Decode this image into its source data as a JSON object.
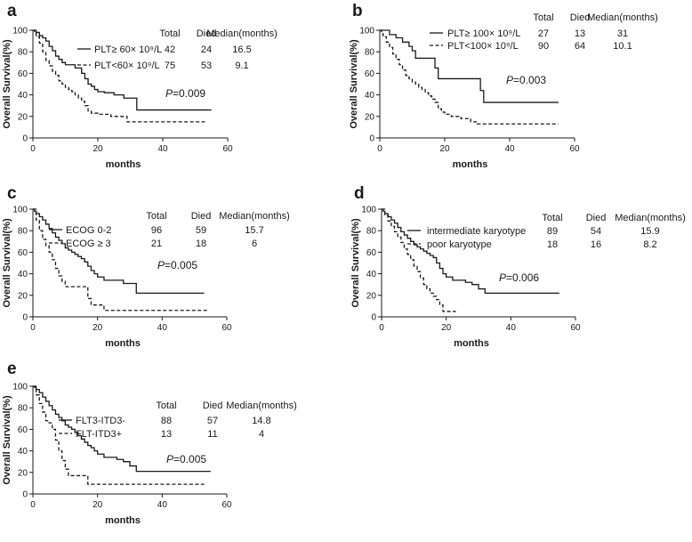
{
  "figure": {
    "common": {
      "y_label": "Overall Survival(%)",
      "x_label": "months",
      "x_ticks": [
        "0",
        "20",
        "40",
        "60"
      ],
      "y_ticks": [
        "0",
        "20",
        "40",
        "60",
        "80",
        "100"
      ],
      "xlim": [
        0,
        60
      ],
      "ylim": [
        0,
        100
      ],
      "table_headers": [
        "Total",
        "Died",
        "Median(months)"
      ]
    },
    "chart_data": [
      {
        "panel": "a",
        "type": "line",
        "title": "",
        "xlabel": "months",
        "ylabel": "Overall Survival(%)",
        "xlim": [
          0,
          60
        ],
        "ylim": [
          0,
          100
        ],
        "p_italic": "P",
        "p_value": "=0.009",
        "series": [
          {
            "name": "PLT≥ 60× 10⁹/L",
            "style": "solid",
            "total": "42",
            "died": "24",
            "median": "16.5",
            "x": [
              0,
              1,
              2,
              3,
              4,
              5,
              6,
              7,
              8,
              9,
              10,
              12,
              13,
              14,
              15,
              16,
              17,
              18,
              19,
              20,
              22,
              25,
              28,
              32,
              55
            ],
            "y": [
              100,
              98,
              95,
              93,
              90,
              85,
              81,
              76,
              73,
              70,
              68,
              68,
              65,
              65,
              60,
              55,
              50,
              48,
              45,
              43,
              42,
              40,
              37,
              26,
              26
            ]
          },
          {
            "name": "PLT<60× 10⁹/L",
            "style": "dashed",
            "total": "75",
            "died": "53",
            "median": "9.1",
            "x": [
              0,
              0.5,
              1,
              2,
              3,
              4,
              5,
              6,
              7,
              8,
              9,
              10,
              11,
              12,
              13,
              14,
              15,
              16,
              17,
              18,
              20,
              24,
              29,
              53
            ],
            "y": [
              100,
              97,
              94,
              88,
              80,
              72,
              67,
              62,
              58,
              53,
              50,
              47,
              45,
              43,
              40,
              37,
              34,
              30,
              25,
              23,
              22,
              20,
              15,
              15
            ]
          }
        ]
      },
      {
        "panel": "b",
        "type": "line",
        "title": "",
        "xlabel": "months",
        "ylabel": "Overall Survival(%)",
        "xlim": [
          0,
          60
        ],
        "ylim": [
          0,
          100
        ],
        "p_italic": "P",
        "p_value": "=0.003",
        "series": [
          {
            "name": "PLT≥ 100× 10⁹/L",
            "style": "solid",
            "total": "27",
            "died": "13",
            "median": "31",
            "x": [
              0,
              3,
              5,
              7,
              9,
              10,
              11,
              15,
              17,
              18,
              30,
              31,
              32,
              55
            ],
            "y": [
              100,
              96,
              93,
              89,
              85,
              81,
              74,
              74,
              65,
              55,
              55,
              44,
              33,
              33
            ]
          },
          {
            "name": "PLT<100× 10⁹/L",
            "style": "dashed",
            "total": "90",
            "died": "64",
            "median": "10.1",
            "x": [
              0,
              0.5,
              1,
              2,
              3,
              4,
              5,
              6,
              7,
              8,
              9,
              10,
              11,
              12,
              13,
              14,
              15,
              16,
              17,
              18,
              19,
              20,
              22,
              25,
              28,
              30,
              55
            ],
            "y": [
              100,
              97,
              94,
              89,
              84,
              78,
              73,
              68,
              63,
              58,
              55,
              52,
              50,
              47,
              45,
              42,
              39,
              36,
              33,
              27,
              24,
              22,
              20,
              18,
              15,
              13,
              13
            ]
          }
        ]
      },
      {
        "panel": "c",
        "type": "line",
        "title": "",
        "xlabel": "months",
        "ylabel": "Overall Survival(%)",
        "xlim": [
          0,
          60
        ],
        "ylim": [
          0,
          100
        ],
        "p_italic": "P",
        "p_value": "=0.005",
        "series": [
          {
            "name": "ECOG 0-2",
            "style": "solid",
            "total": "96",
            "died": "59",
            "median": "15.7",
            "x": [
              0,
              0.5,
              1,
              2,
              3,
              4,
              5,
              6,
              7,
              8,
              9,
              10,
              11,
              12,
              13,
              14,
              15,
              16,
              17,
              18,
              19,
              20,
              22,
              26,
              28,
              32,
              53
            ],
            "y": [
              100,
              98,
              96,
              93,
              90,
              86,
              82,
              78,
              74,
              71,
              68,
              64,
              62,
              60,
              58,
              56,
              54,
              51,
              47,
              43,
              40,
              37,
              34,
              34,
              31,
              22,
              22
            ]
          },
          {
            "name": "ECOG ≥ 3",
            "style": "dashed",
            "total": "21",
            "died": "18",
            "median": "6",
            "x": [
              0,
              1,
              2,
              3,
              4,
              5,
              6,
              7,
              8,
              9,
              10,
              16,
              17,
              18,
              22,
              25,
              54
            ],
            "y": [
              100,
              90,
              80,
              72,
              66,
              60,
              53,
              45,
              38,
              33,
              28,
              28,
              17,
              11,
              6,
              6,
              6
            ]
          }
        ]
      },
      {
        "panel": "d",
        "type": "line",
        "title": "",
        "xlabel": "months",
        "ylabel": "Overall Survival(%)",
        "xlim": [
          0,
          60
        ],
        "ylim": [
          0,
          100
        ],
        "p_italic": "P",
        "p_value": "=0.006",
        "series": [
          {
            "name": "intermediate karyotype",
            "style": "solid",
            "total": "89",
            "died": "54",
            "median": "15.9",
            "x": [
              0,
              0.5,
              1,
              2,
              3,
              4,
              5,
              6,
              7,
              8,
              9,
              10,
              11,
              12,
              13,
              14,
              15,
              16,
              17,
              18,
              19,
              20,
              22,
              26,
              28,
              30,
              32,
              55
            ],
            "y": [
              100,
              98,
              96,
              93,
              90,
              87,
              83,
              79,
              76,
              73,
              70,
              67,
              65,
              63,
              61,
              59,
              57,
              55,
              50,
              45,
              40,
              37,
              34,
              32,
              30,
              26,
              22,
              22
            ]
          },
          {
            "name": "poor karyotype",
            "style": "dashed",
            "total": "18",
            "died": "16",
            "median": "8.2",
            "x": [
              0,
              1,
              2,
              3,
              4,
              5,
              6,
              7,
              8,
              9,
              10,
              11,
              12,
              13,
              14,
              15,
              16,
              17,
              18,
              19,
              20,
              23
            ],
            "y": [
              100,
              94,
              89,
              84,
              79,
              74,
              69,
              63,
              58,
              53,
              47,
              42,
              36,
              30,
              26,
              22,
              19,
              16,
              11,
              5,
              5,
              5
            ]
          }
        ]
      },
      {
        "panel": "e",
        "type": "line",
        "title": "",
        "xlabel": "months",
        "ylabel": "Overall Survival(%)",
        "xlim": [
          0,
          60
        ],
        "ylim": [
          0,
          100
        ],
        "p_italic": "P",
        "p_value": "=0.005",
        "series": [
          {
            "name": "FLT3-ITD3-",
            "style": "solid",
            "total": "88",
            "died": "57",
            "median": "14.8",
            "x": [
              0,
              0.5,
              1,
              2,
              3,
              4,
              5,
              6,
              7,
              8,
              9,
              10,
              11,
              12,
              13,
              14,
              15,
              16,
              17,
              18,
              19,
              20,
              22,
              26,
              28,
              30,
              32,
              55
            ],
            "y": [
              100,
              99,
              97,
              94,
              90,
              86,
              82,
              78,
              74,
              71,
              68,
              64,
              62,
              60,
              57,
              54,
              51,
              48,
              45,
              43,
              40,
              37,
              34,
              32,
              30,
              26,
              21,
              21
            ]
          },
          {
            "name": "FLT-ITD3+",
            "style": "dashed",
            "total": "13",
            "died": "11",
            "median": "4",
            "x": [
              0,
              1,
              2,
              3,
              4,
              5,
              6,
              7,
              8,
              9,
              10,
              11,
              16,
              17,
              18,
              53
            ],
            "y": [
              100,
              92,
              84,
              76,
              68,
              66,
              60,
              50,
              40,
              31,
              23,
              17,
              17,
              9,
              9,
              9
            ]
          }
        ]
      }
    ]
  }
}
